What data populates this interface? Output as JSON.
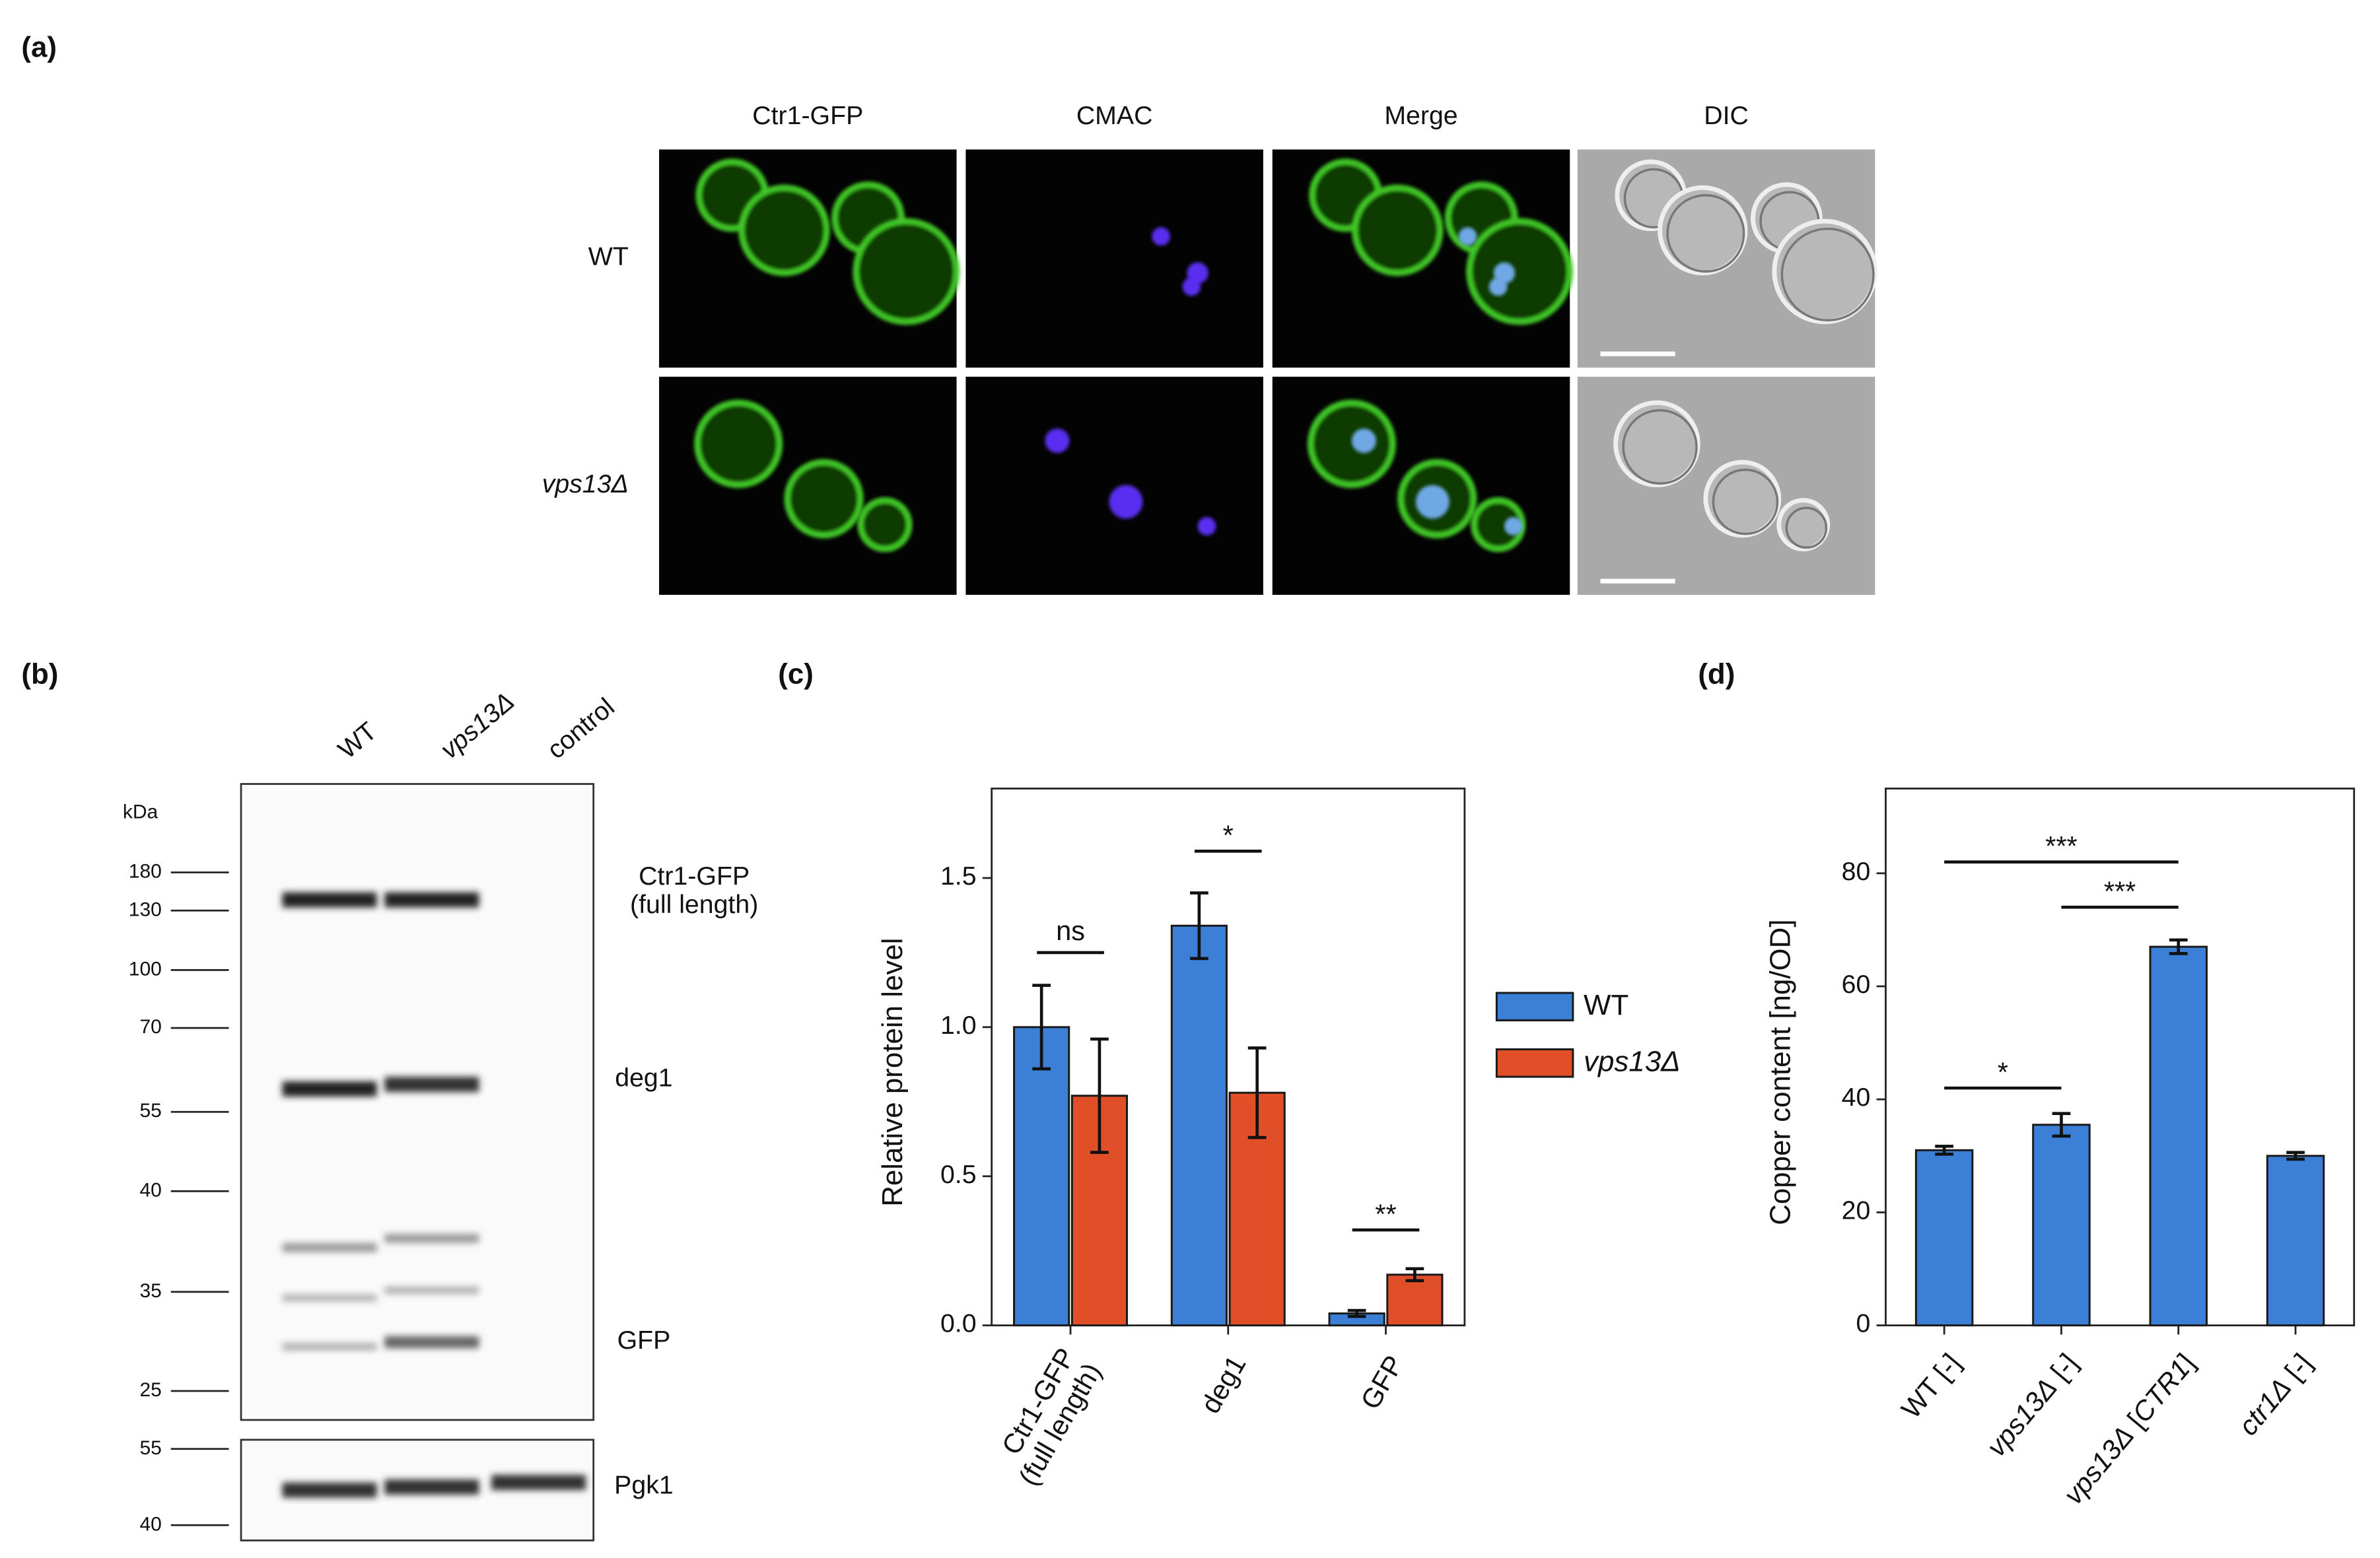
{
  "panel_labels": [
    "(a)",
    "(b)",
    "(c)",
    "(d)"
  ],
  "microscopy": {
    "columns": [
      "Ctr1-GFP",
      "CMAC",
      "Merge",
      "DIC"
    ],
    "rows": [
      "WT",
      "vps13Δ"
    ]
  },
  "blot": {
    "lanes": [
      "WT",
      "vps13Δ",
      "control"
    ],
    "unit": "kDa",
    "markers": [
      "180",
      "130",
      "100",
      "70",
      "55",
      "40",
      "35",
      "25"
    ],
    "loading_markers": [
      "55",
      "40"
    ],
    "bands": [
      "Ctr1-GFP\n(full length)",
      "deg1",
      "GFP"
    ],
    "loading_band": "Pgk1"
  },
  "chart_data": [
    {
      "type": "bar",
      "ylabel": "Relative protein level",
      "categories": [
        "Ctr1-GFP\n(full length)",
        "deg1",
        "GFP"
      ],
      "series": [
        {
          "name": "WT",
          "color": "#3b7fd6",
          "values": [
            1.0,
            1.34,
            0.04
          ],
          "errors": [
            0.14,
            0.11,
            0.01
          ]
        },
        {
          "name": "vps13Δ",
          "color": "#e04f27",
          "values": [
            0.77,
            0.78,
            0.17
          ],
          "errors": [
            0.19,
            0.15,
            0.02
          ]
        }
      ],
      "ylim": [
        0,
        1.8
      ],
      "yticks": [
        {
          "value": 0,
          "label": "0.0"
        },
        {
          "value": 0.5,
          "label": "0.5"
        },
        {
          "value": 1,
          "label": "1.0"
        },
        {
          "value": 1.5,
          "label": "1.5"
        }
      ],
      "annotations": [
        {
          "text": "ns",
          "category": 0,
          "y": 1.25
        },
        {
          "text": "*",
          "category": 1,
          "y": 1.59
        },
        {
          "text": "**",
          "category": 2,
          "y": 0.32
        }
      ],
      "legend": "outside-right"
    },
    {
      "type": "bar",
      "ylabel": "Copper content [ng/OD]",
      "categories": [
        "WT [-]",
        "vps13Δ [-]",
        "vps13Δ [CTR1]",
        "ctr1Δ [-]"
      ],
      "series": [
        {
          "color": "#3b7fd6",
          "values": [
            31,
            35.5,
            67,
            30
          ],
          "errors": [
            0.7,
            2,
            1.2,
            0.6
          ]
        }
      ],
      "ylim": [
        0,
        95
      ],
      "yticks": [
        0,
        20,
        40,
        60,
        80
      ],
      "annotations": [
        {
          "text": "*",
          "from": 0,
          "to": 1,
          "y": 42
        },
        {
          "text": "***",
          "from": 0,
          "to": 2,
          "y": 82
        },
        {
          "text": "***",
          "from": 1,
          "to": 2,
          "y": 74
        }
      ]
    }
  ]
}
